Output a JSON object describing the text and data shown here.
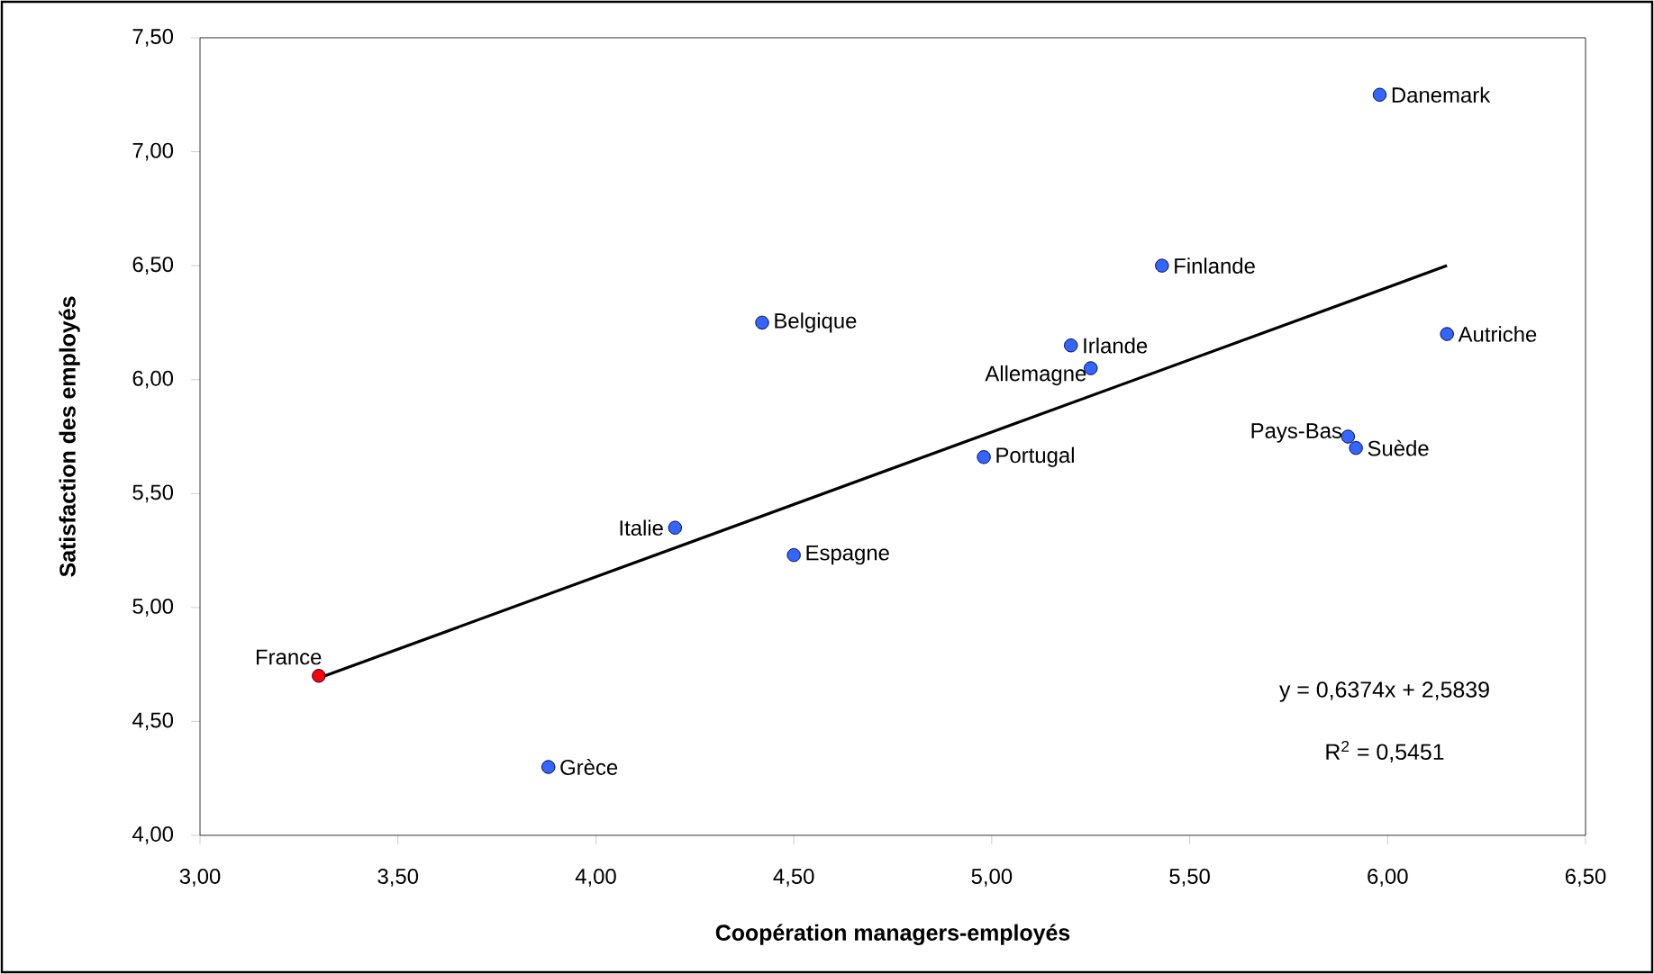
{
  "chart_data": {
    "type": "scatter",
    "xlabel": "Coopération managers-employés",
    "ylabel": "Satisfaction des employés",
    "xlim": [
      3.0,
      6.5
    ],
    "ylim": [
      4.0,
      7.5
    ],
    "xticks": [
      {
        "value": 3.0,
        "label": "3,00"
      },
      {
        "value": 3.5,
        "label": "3,50"
      },
      {
        "value": 4.0,
        "label": "4,00"
      },
      {
        "value": 4.5,
        "label": "4,50"
      },
      {
        "value": 5.0,
        "label": "5,00"
      },
      {
        "value": 5.5,
        "label": "5,50"
      },
      {
        "value": 6.0,
        "label": "6,00"
      },
      {
        "value": 6.5,
        "label": "6,50"
      }
    ],
    "yticks": [
      {
        "value": 4.0,
        "label": "4,00"
      },
      {
        "value": 4.5,
        "label": "4,50"
      },
      {
        "value": 5.0,
        "label": "5,00"
      },
      {
        "value": 5.5,
        "label": "5,50"
      },
      {
        "value": 6.0,
        "label": "6,00"
      },
      {
        "value": 6.5,
        "label": "6,50"
      },
      {
        "value": 7.0,
        "label": "7,00"
      },
      {
        "value": 7.5,
        "label": "7,50"
      }
    ],
    "marker": "circle",
    "series": [
      {
        "type": "scatter",
        "x": [
          3.3,
          3.88,
          4.2,
          4.42,
          4.5,
          4.98,
          5.2,
          5.25,
          5.43,
          5.9,
          5.92,
          5.98,
          6.15
        ],
        "values": [
          4.7,
          4.3,
          5.35,
          6.25,
          5.23,
          5.66,
          6.15,
          6.05,
          6.5,
          5.75,
          5.7,
          7.25,
          6.2
        ],
        "colors": [
          "#ff0000",
          "#3366ff",
          "#3366ff",
          "#3366ff",
          "#3366ff",
          "#3366ff",
          "#3366ff",
          "#3366ff",
          "#3366ff",
          "#3366ff",
          "#3366ff",
          "#3366ff",
          "#3366ff"
        ]
      },
      {
        "type": "line",
        "x": [
          3.3,
          6.15
        ],
        "values": [
          4.69,
          6.5
        ],
        "color": "#000000",
        "marker": "none",
        "line_style": "solid"
      }
    ],
    "annotations": [
      {
        "text": "France",
        "x": 3.3,
        "y": 4.7
      },
      {
        "text": "Grèce",
        "x": 3.88,
        "y": 4.3
      },
      {
        "text": "Italie",
        "x": 4.2,
        "y": 5.35
      },
      {
        "text": "Belgique",
        "x": 4.42,
        "y": 6.25
      },
      {
        "text": "Espagne",
        "x": 4.5,
        "y": 5.23
      },
      {
        "text": "Portugal",
        "x": 4.98,
        "y": 5.66
      },
      {
        "text": "Irlande",
        "x": 5.2,
        "y": 6.15
      },
      {
        "text": "Allemagne",
        "x": 5.25,
        "y": 6.05
      },
      {
        "text": "Finlande",
        "x": 5.43,
        "y": 6.5
      },
      {
        "text": "Pays-Bas",
        "x": 5.9,
        "y": 5.75
      },
      {
        "text": "Suède",
        "x": 5.92,
        "y": 5.7
      },
      {
        "text": "Danemark",
        "x": 5.98,
        "y": 7.25
      },
      {
        "text": "Autriche",
        "x": 6.15,
        "y": 6.2
      },
      "y = 0,6374x + 2,5839",
      "R$^{2}$ = 0,5451"
    ]
  }
}
